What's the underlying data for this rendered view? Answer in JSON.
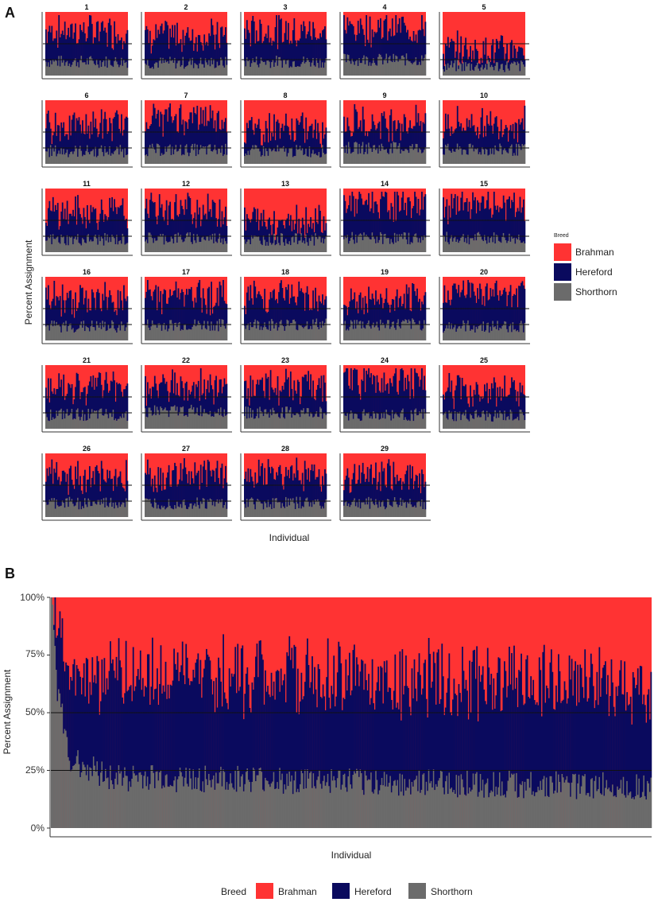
{
  "figure": {
    "panel_a_label": "A",
    "panel_b_label": "B"
  },
  "colors": {
    "brahman": "#ff3333",
    "hereford": "#0a0a5e",
    "shorthorn": "#6b6b6b",
    "axis": "#333333",
    "hline": "#111111"
  },
  "chart_data": [
    {
      "type": "bar",
      "stacked": true,
      "panel": "A",
      "title": "",
      "facet_titles": [
        "1",
        "2",
        "3",
        "4",
        "5",
        "6",
        "7",
        "8",
        "9",
        "10",
        "11",
        "12",
        "13",
        "14",
        "15",
        "16",
        "17",
        "18",
        "19",
        "20",
        "21",
        "22",
        "23",
        "24",
        "25",
        "26",
        "27",
        "28",
        "29"
      ],
      "xlabel": "Individual",
      "ylabel": "Percent Assignment",
      "legend": {
        "title": "Breed",
        "entries": [
          "Brahman",
          "Hereford",
          "Shorthorn"
        ],
        "position": "right"
      },
      "hlines": [
        25,
        50
      ],
      "ylim": [
        0,
        100
      ],
      "series_order": [
        "Shorthorn",
        "Hereford",
        "Brahman"
      ],
      "facet_mean_composition_percent": [
        {
          "facet": "1",
          "Shorthorn": 22,
          "Hereford": 48,
          "Brahman": 30
        },
        {
          "facet": "2",
          "Shorthorn": 20,
          "Hereford": 42,
          "Brahman": 38
        },
        {
          "facet": "3",
          "Shorthorn": 22,
          "Hereford": 48,
          "Brahman": 30
        },
        {
          "facet": "4",
          "Shorthorn": 25,
          "Hereford": 50,
          "Brahman": 25
        },
        {
          "facet": "5",
          "Shorthorn": 15,
          "Hereford": 25,
          "Brahman": 60
        },
        {
          "facet": "6",
          "Shorthorn": 20,
          "Hereford": 40,
          "Brahman": 40
        },
        {
          "facet": "7",
          "Shorthorn": 22,
          "Hereford": 50,
          "Brahman": 28
        },
        {
          "facet": "8",
          "Shorthorn": 20,
          "Hereford": 35,
          "Brahman": 45
        },
        {
          "facet": "9",
          "Shorthorn": 25,
          "Hereford": 40,
          "Brahman": 35
        },
        {
          "facet": "10",
          "Shorthorn": 22,
          "Hereford": 40,
          "Brahman": 38
        },
        {
          "facet": "11",
          "Shorthorn": 20,
          "Hereford": 42,
          "Brahman": 38
        },
        {
          "facet": "12",
          "Shorthorn": 22,
          "Hereford": 45,
          "Brahman": 33
        },
        {
          "facet": "13",
          "Shorthorn": 20,
          "Hereford": 30,
          "Brahman": 50
        },
        {
          "facet": "14",
          "Shorthorn": 22,
          "Hereford": 55,
          "Brahman": 23
        },
        {
          "facet": "15",
          "Shorthorn": 22,
          "Hereford": 50,
          "Brahman": 28
        },
        {
          "facet": "16",
          "Shorthorn": 22,
          "Hereford": 42,
          "Brahman": 36
        },
        {
          "facet": "17",
          "Shorthorn": 24,
          "Hereford": 46,
          "Brahman": 30
        },
        {
          "facet": "18",
          "Shorthorn": 25,
          "Hereford": 45,
          "Brahman": 30
        },
        {
          "facet": "19",
          "Shorthorn": 25,
          "Hereford": 35,
          "Brahman": 40
        },
        {
          "facet": "20",
          "Shorthorn": 22,
          "Hereford": 55,
          "Brahman": 23
        },
        {
          "facet": "21",
          "Shorthorn": 22,
          "Hereford": 45,
          "Brahman": 33
        },
        {
          "facet": "22",
          "Shorthorn": 28,
          "Hereford": 38,
          "Brahman": 34
        },
        {
          "facet": "23",
          "Shorthorn": 25,
          "Hereford": 40,
          "Brahman": 35
        },
        {
          "facet": "24",
          "Shorthorn": 22,
          "Hereford": 55,
          "Brahman": 23
        },
        {
          "facet": "25",
          "Shorthorn": 20,
          "Hereford": 40,
          "Brahman": 40
        },
        {
          "facet": "26",
          "Shorthorn": 22,
          "Hereford": 40,
          "Brahman": 38
        },
        {
          "facet": "27",
          "Shorthorn": 22,
          "Hereford": 45,
          "Brahman": 33
        },
        {
          "facet": "28",
          "Shorthorn": 22,
          "Hereford": 45,
          "Brahman": 33
        },
        {
          "facet": "29",
          "Shorthorn": 22,
          "Hereford": 42,
          "Brahman": 36
        }
      ]
    },
    {
      "type": "bar",
      "stacked": true,
      "panel": "B",
      "title": "",
      "xlabel": "Individual",
      "ylabel": "Percent Assignment",
      "yticks": [
        "0%",
        "25%",
        "50%",
        "75%",
        "100%"
      ],
      "ytick_values": [
        0,
        25,
        50,
        75,
        100
      ],
      "ylim": [
        0,
        100
      ],
      "hlines": [
        25,
        50
      ],
      "legend": {
        "title": "Breed",
        "entries": [
          "Brahman",
          "Hereford",
          "Shorthorn"
        ],
        "position": "bottom"
      },
      "series_order": [
        "Shorthorn",
        "Hereford",
        "Brahman"
      ],
      "sorted_trend_points": [
        {
          "individual_fraction": 0.0,
          "Shorthorn": 100,
          "Hereford": 0,
          "Brahman": 0
        },
        {
          "individual_fraction": 0.01,
          "Shorthorn": 60,
          "Hereford": 25,
          "Brahman": 15
        },
        {
          "individual_fraction": 0.03,
          "Shorthorn": 30,
          "Hereford": 38,
          "Brahman": 32
        },
        {
          "individual_fraction": 0.1,
          "Shorthorn": 22,
          "Hereford": 45,
          "Brahman": 33
        },
        {
          "individual_fraction": 0.5,
          "Shorthorn": 20,
          "Hereford": 45,
          "Brahman": 35
        },
        {
          "individual_fraction": 1.0,
          "Shorthorn": 18,
          "Hereford": 44,
          "Brahman": 38
        }
      ]
    }
  ]
}
